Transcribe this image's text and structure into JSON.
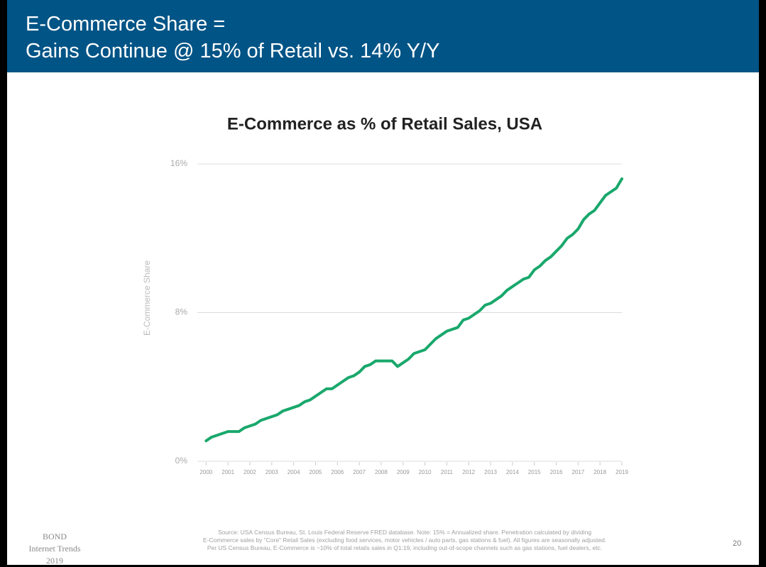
{
  "header": {
    "title_line1": "E-Commerce Share =",
    "title_line2": "Gains Continue @ 15% of Retail vs. 14% Y/Y"
  },
  "chart_data": {
    "type": "line",
    "title": "E-Commerce as % of Retail Sales, USA",
    "y_label": "E-Commerce Share",
    "color": "#19a86c",
    "x": [
      2000,
      2000.25,
      2000.5,
      2000.75,
      2001,
      2001.25,
      2001.5,
      2001.75,
      2002,
      2002.25,
      2002.5,
      2002.75,
      2003,
      2003.25,
      2003.5,
      2003.75,
      2004,
      2004.25,
      2004.5,
      2004.75,
      2005,
      2005.25,
      2005.5,
      2005.75,
      2006,
      2006.25,
      2006.5,
      2006.75,
      2007,
      2007.25,
      2007.5,
      2007.75,
      2008,
      2008.25,
      2008.5,
      2008.75,
      2009,
      2009.25,
      2009.5,
      2009.75,
      2010,
      2010.25,
      2010.5,
      2010.75,
      2011,
      2011.25,
      2011.5,
      2011.75,
      2012,
      2012.25,
      2012.5,
      2012.75,
      2013,
      2013.25,
      2013.5,
      2013.75,
      2014,
      2014.25,
      2014.5,
      2014.75,
      2015,
      2015.25,
      2015.5,
      2015.75,
      2016,
      2016.25,
      2016.5,
      2016.75,
      2017,
      2017.25,
      2017.5,
      2017.75,
      2018,
      2018.25,
      2018.5,
      2018.75,
      2019
    ],
    "values": [
      1.1,
      1.3,
      1.4,
      1.5,
      1.6,
      1.6,
      1.6,
      1.8,
      1.9,
      2.0,
      2.2,
      2.3,
      2.4,
      2.5,
      2.7,
      2.8,
      2.9,
      3.0,
      3.2,
      3.3,
      3.5,
      3.7,
      3.9,
      3.9,
      4.1,
      4.3,
      4.5,
      4.6,
      4.8,
      5.1,
      5.2,
      5.4,
      5.4,
      5.4,
      5.4,
      5.1,
      5.3,
      5.5,
      5.8,
      5.9,
      6.0,
      6.3,
      6.6,
      6.8,
      7.0,
      7.1,
      7.2,
      7.6,
      7.7,
      7.9,
      8.1,
      8.4,
      8.5,
      8.7,
      8.9,
      9.2,
      9.4,
      9.6,
      9.8,
      9.9,
      10.3,
      10.5,
      10.8,
      11.0,
      11.3,
      11.6,
      12.0,
      12.2,
      12.5,
      13.0,
      13.3,
      13.5,
      13.9,
      14.3,
      14.5,
      14.7,
      15.2
    ],
    "xlim": [
      1999.6,
      2019
    ],
    "xticks": [
      2000,
      2001,
      2002,
      2003,
      2004,
      2005,
      2006,
      2007,
      2008,
      2009,
      2010,
      2011,
      2012,
      2013,
      2014,
      2015,
      2016,
      2017,
      2018,
      2019
    ],
    "ylim": [
      0,
      16
    ],
    "yticks": [
      {
        "value": 0,
        "label": "0%"
      },
      {
        "value": 8,
        "label": "8%"
      },
      {
        "value": 16,
        "label": "16%"
      }
    ],
    "grid": true
  },
  "footer": {
    "brand": [
      "BOND",
      "Internet Trends",
      "2019"
    ],
    "source": [
      "Source: USA Census Bureau, St. Louis Federal Reserve FRED database.  Note: 15% = Annualized share.  Penetration calculated by dividing",
      "E-Commerce sales by “Core” Retail Sales (excluding food services, motor vehicles / auto parts, gas stations & fuel). All figures are seasonally adjusted.",
      "Per US Census Bureau, E-Commerce is ~10% of total retails sales in Q1:19, including out-of-scope channels such as gas stations, fuel dealers, etc."
    ],
    "page": "20"
  }
}
